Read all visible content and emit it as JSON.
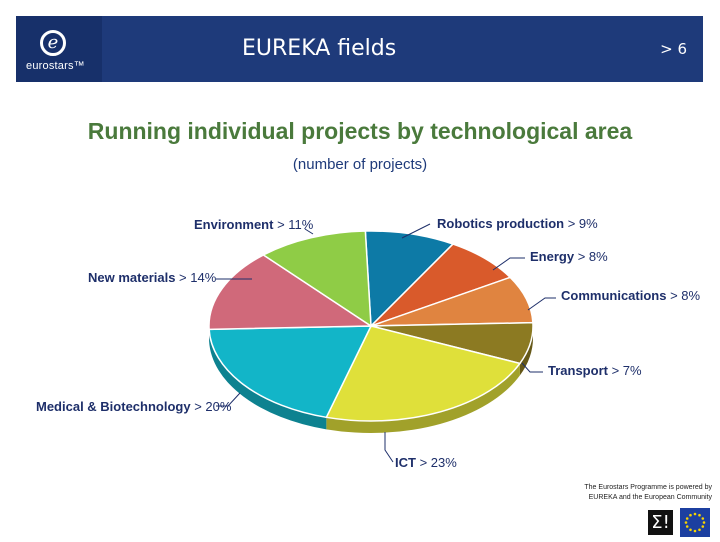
{
  "header": {
    "logo_text": "eurostars™",
    "title": "EUREKA fields",
    "page_number": "> 6"
  },
  "chart_data": {
    "type": "pie",
    "title": "Running individual projects by technological area",
    "subtitle": "(number of projects)",
    "unit": "%",
    "slices": [
      {
        "category": "Robotics production",
        "label_text": "Robotics production > 9%",
        "value": 9,
        "color": "#0d7aa6"
      },
      {
        "category": "Energy",
        "label_text": "Energy > 8%",
        "value": 8,
        "color": "#d95a2b"
      },
      {
        "category": "Communications",
        "label_text": "Communications > 8%",
        "value": 8,
        "color": "#e08440"
      },
      {
        "category": "Transport",
        "label_text": "Transport > 7%",
        "value": 7,
        "color": "#8c7a22"
      },
      {
        "category": "ICT",
        "label_text": "ICT > 23%",
        "value": 23,
        "color": "#dfe03a"
      },
      {
        "category": "Medical & Biotechnology",
        "label_text": "Medical & Biotechnology > 20%",
        "value": 20,
        "color": "#12b5c8"
      },
      {
        "category": "New materials",
        "label_text": "New materials > 14%",
        "value": 14,
        "color": "#d0697a"
      },
      {
        "category": "Environment",
        "label_text": "Environment > 11%",
        "value": 11,
        "color": "#8fcc46"
      }
    ]
  },
  "footer": {
    "line1": "The Eurostars Programme is powered by",
    "line2": "EUREKA and the European Community",
    "eureka_logo_text": "Σ!"
  }
}
